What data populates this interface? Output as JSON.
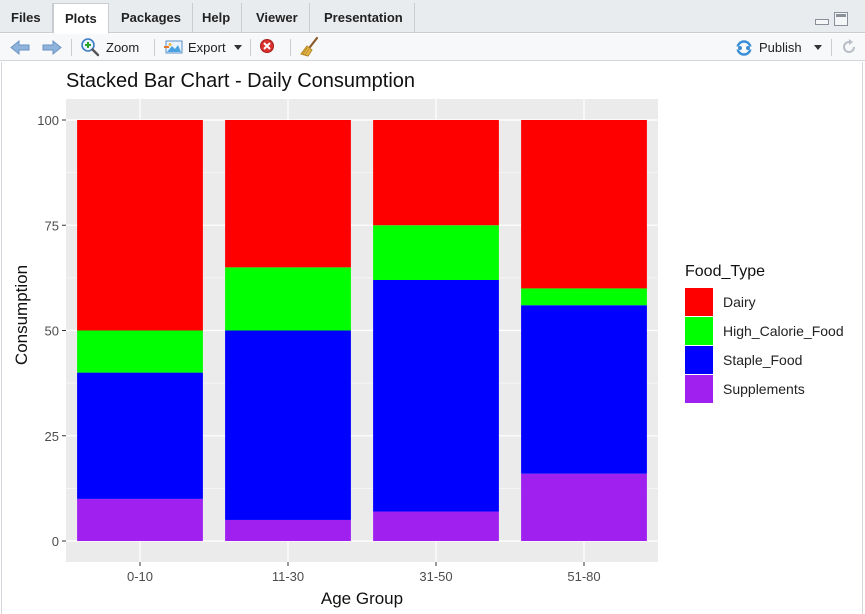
{
  "tabs": [
    {
      "label": "Files",
      "active": false
    },
    {
      "label": "Plots",
      "active": true
    },
    {
      "label": "Packages",
      "active": false
    },
    {
      "label": "Help",
      "active": false
    },
    {
      "label": "Viewer",
      "active": false
    },
    {
      "label": "Presentation",
      "active": false
    }
  ],
  "toolbar": {
    "zoom_label": "Zoom",
    "export_label": "Export",
    "publish_label": "Publish"
  },
  "icons": {
    "back": "arrow-left-icon",
    "forward": "arrow-right-icon",
    "zoom": "magnifier-icon",
    "export": "export-image-icon",
    "remove": "remove-plot-icon",
    "clear": "broom-icon",
    "publish": "publish-icon",
    "refresh": "refresh-icon"
  },
  "colors": {
    "Dairy": "#ff0000",
    "High_Calorie_Food": "#00ff00",
    "Staple_Food": "#0000ff",
    "Supplements": "#a020f0",
    "panel_bg": "#ebebeb",
    "grid": "#ffffff"
  },
  "chart_data": {
    "type": "bar",
    "stacked": true,
    "title": "Stacked Bar Chart - Daily Consumption",
    "xlabel": "Age Group",
    "ylabel": "Consumption",
    "ylim": [
      0,
      100
    ],
    "yticks": [
      0,
      25,
      50,
      75,
      100
    ],
    "categories": [
      "0-10",
      "11-30",
      "31-50",
      "51-80"
    ],
    "legend_title": "Food_Type",
    "legend_position": "right",
    "series": [
      {
        "name": "Dairy",
        "values": [
          50,
          35,
          25,
          40
        ]
      },
      {
        "name": "High_Calorie_Food",
        "values": [
          10,
          15,
          13,
          4
        ]
      },
      {
        "name": "Staple_Food",
        "values": [
          30,
          45,
          55,
          40
        ]
      },
      {
        "name": "Supplements",
        "values": [
          10,
          5,
          7,
          16
        ]
      }
    ]
  }
}
